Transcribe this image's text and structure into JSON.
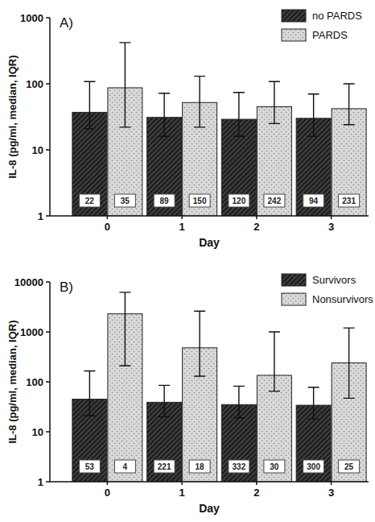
{
  "chart_data": [
    {
      "type": "bar",
      "title": "A)",
      "x_label": "Day",
      "y_label": "IL-8 (pg/ml, median, IQR)",
      "categories": [
        "0",
        "1",
        "2",
        "3"
      ],
      "series": [
        {
          "name": "no PARDS",
          "color": "#3c3c3c",
          "values": [
            37,
            31,
            29,
            30
          ],
          "iqr_low": [
            21,
            16,
            16,
            16
          ],
          "iqr_high": [
            108,
            72,
            74,
            70
          ],
          "counts": [
            22,
            89,
            120,
            94
          ]
        },
        {
          "name": "PARDS",
          "color": "#d9d9d9",
          "values": [
            87,
            52,
            45,
            42
          ],
          "iqr_low": [
            22,
            22,
            25,
            24
          ],
          "iqr_high": [
            420,
            130,
            108,
            100
          ],
          "counts": [
            35,
            150,
            242,
            231
          ]
        }
      ],
      "log": "y",
      "ylim": [
        1,
        1000
      ],
      "yticks": [
        1,
        10,
        100,
        1000
      ],
      "grid": false,
      "legend": "upper right"
    },
    {
      "type": "bar",
      "title": "B)",
      "x_label": "Day",
      "y_label": "IL-8 (pg/ml, median, IQR)",
      "categories": [
        "0",
        "1",
        "2",
        "3"
      ],
      "series": [
        {
          "name": "Survivors",
          "color": "#3c3c3c",
          "values": [
            45,
            39,
            35,
            34
          ],
          "iqr_low": [
            21,
            20,
            19,
            18
          ],
          "iqr_high": [
            165,
            85,
            82,
            78
          ],
          "counts": [
            53,
            221,
            332,
            300
          ]
        },
        {
          "name": "Nonsurvivors",
          "color": "#d9d9d9",
          "values": [
            2300,
            480,
            135,
            240
          ],
          "iqr_low": [
            210,
            130,
            65,
            47
          ],
          "iqr_high": [
            6200,
            2600,
            1000,
            1200
          ],
          "counts": [
            4,
            18,
            30,
            25
          ]
        }
      ],
      "log": "y",
      "ylim": [
        1,
        10000
      ],
      "yticks": [
        1,
        10,
        100,
        1000,
        10000
      ],
      "grid": false,
      "legend": "upper right"
    }
  ]
}
